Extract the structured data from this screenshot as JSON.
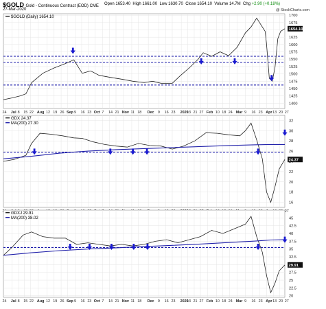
{
  "header": {
    "symbol": "$GOLD",
    "name": "Gold - Continuous Contract (EOD) CME",
    "date": "27-Mar-2020",
    "open_label": "Open",
    "open": "1653.40",
    "high_label": "High",
    "high": "1661.00",
    "low_label": "Low",
    "low": "1630.70",
    "close_label": "Close",
    "close": "1654.10",
    "volume_label": "Volume",
    "volume": "14.7M",
    "change_label": "Chg",
    "change": "+2.90 (+0.18%)",
    "brand": "@ StockCharts.com"
  },
  "colors": {
    "price": "#222222",
    "ma": "#2222aa",
    "hline": "#1a1aaa",
    "arrow": "#1a1ad0",
    "grid": "#e4e4e4",
    "axis": "#888888"
  },
  "chart_data": [
    {
      "type": "line",
      "legend": "$GOLD (Daily) 1654.10",
      "last_value_label": "1654.10",
      "ylim": [
        1382,
        1705
      ],
      "y_ticks": [
        1400,
        1425,
        1450,
        1475,
        1500,
        1525,
        1550,
        1575,
        1600,
        1625,
        1650,
        1675,
        1700
      ],
      "hlines": [
        1560,
        1540,
        1462
      ],
      "arrows": [
        {
          "x": 0.247,
          "y": 1568
        },
        {
          "x": 0.703,
          "y": 1532
        },
        {
          "x": 0.822,
          "y": 1532
        },
        {
          "x": 0.953,
          "y": 1475
        }
      ],
      "series": [
        {
          "x": [
            0,
            0.03,
            0.06,
            0.08,
            0.1,
            0.14,
            0.18,
            0.22,
            0.25,
            0.28,
            0.31,
            0.34,
            0.38,
            0.42,
            0.46,
            0.5,
            0.53,
            0.56,
            0.6,
            0.63,
            0.66,
            0.69,
            0.71,
            0.74,
            0.77,
            0.8,
            0.83,
            0.86,
            0.88,
            0.9,
            0.91,
            0.93,
            0.935,
            0.945,
            0.955,
            0.965,
            0.975,
            0.985,
            1.0
          ],
          "values": [
            1412,
            1418,
            1425,
            1432,
            1470,
            1502,
            1520,
            1535,
            1548,
            1502,
            1510,
            1495,
            1488,
            1482,
            1475,
            1470,
            1475,
            1468,
            1468,
            1495,
            1520,
            1548,
            1572,
            1560,
            1575,
            1562,
            1590,
            1640,
            1660,
            1690,
            1675,
            1645,
            1600,
            1485,
            1475,
            1520,
            1620,
            1645,
            1654
          ]
        }
      ]
    },
    {
      "type": "line",
      "legend_price": "GDX 24.37",
      "legend_ma": "MA(200) 27.30",
      "last_value_label": "24.37",
      "ylim": [
        15,
        33
      ],
      "y_ticks": [
        16,
        18,
        20,
        22,
        24,
        26,
        28,
        30,
        32
      ],
      "hlines": [
        25.8
      ],
      "arrows": [
        {
          "x": 0.11,
          "y": 25.3
        },
        {
          "x": 0.38,
          "y": 25.3
        },
        {
          "x": 0.46,
          "y": 25.3
        },
        {
          "x": 0.51,
          "y": 25.3
        },
        {
          "x": 0.905,
          "y": 25.3
        },
        {
          "x": 1.0,
          "y": 29.0
        }
      ],
      "series": [
        {
          "x": [
            0,
            0.04,
            0.08,
            0.1,
            0.13,
            0.17,
            0.21,
            0.25,
            0.28,
            0.32,
            0.36,
            0.4,
            0.44,
            0.48,
            0.52,
            0.56,
            0.6,
            0.64,
            0.68,
            0.72,
            0.76,
            0.8,
            0.84,
            0.86,
            0.88,
            0.9,
            0.92,
            0.935,
            0.95,
            0.965,
            0.98,
            1.0
          ],
          "values": [
            24.0,
            24.4,
            25.2,
            27.5,
            29.5,
            29.3,
            29.0,
            28.6,
            28.5,
            27.8,
            27.3,
            27.0,
            26.8,
            27.5,
            27.1,
            27.0,
            26.4,
            27.0,
            28.0,
            29.6,
            29.5,
            29.2,
            29.0,
            30.0,
            31.5,
            28.2,
            24.5,
            18.0,
            16.0,
            19.0,
            22.5,
            24.37
          ]
        },
        {
          "x": [
            0,
            0.1,
            0.2,
            0.3,
            0.4,
            0.5,
            0.6,
            0.7,
            0.8,
            0.9,
            0.95,
            1.0
          ],
          "values": [
            24.5,
            25.0,
            25.6,
            26.0,
            26.3,
            26.5,
            26.7,
            26.9,
            27.1,
            27.25,
            27.3,
            27.3
          ]
        }
      ]
    },
    {
      "type": "line",
      "legend_price": "GDXJ 29.91",
      "legend_ma": "MA(200) 38.02",
      "last_value_label": "29.91",
      "ylim": [
        19.5,
        47.5
      ],
      "y_ticks": [
        20.0,
        22.5,
        25.0,
        27.5,
        30.0,
        32.5,
        35.0,
        37.5,
        40.0,
        42.5,
        45.0
      ],
      "hlines": [
        35.5
      ],
      "arrows": [
        {
          "x": 0.237,
          "y": 34.7
        },
        {
          "x": 0.306,
          "y": 34.7
        },
        {
          "x": 0.384,
          "y": 34.7
        },
        {
          "x": 0.463,
          "y": 34.7
        },
        {
          "x": 0.512,
          "y": 34.7
        },
        {
          "x": 0.905,
          "y": 34.7
        },
        {
          "x": 1.0,
          "y": 37.0
        }
      ],
      "series": [
        {
          "x": [
            0,
            0.03,
            0.07,
            0.1,
            0.14,
            0.18,
            0.22,
            0.26,
            0.3,
            0.34,
            0.38,
            0.42,
            0.46,
            0.5,
            0.54,
            0.58,
            0.62,
            0.66,
            0.7,
            0.74,
            0.78,
            0.82,
            0.86,
            0.88,
            0.9,
            0.92,
            0.935,
            0.95,
            0.965,
            0.98,
            1.0
          ],
          "values": [
            33.0,
            35.5,
            39.5,
            40.5,
            39.0,
            38.5,
            38.5,
            36.5,
            37.0,
            36.5,
            36.0,
            36.5,
            36.0,
            36.5,
            37.5,
            38.0,
            37.0,
            38.0,
            39.0,
            41.0,
            40.0,
            41.5,
            43.0,
            45.5,
            39.0,
            34.0,
            26.5,
            21.0,
            24.0,
            28.0,
            29.91
          ]
        },
        {
          "x": [
            0,
            0.1,
            0.2,
            0.3,
            0.4,
            0.5,
            0.6,
            0.7,
            0.8,
            0.9,
            0.95,
            1.0
          ],
          "values": [
            33.0,
            33.8,
            34.5,
            35.0,
            35.4,
            35.8,
            36.2,
            36.6,
            37.1,
            37.6,
            37.9,
            38.0
          ]
        }
      ]
    }
  ],
  "x_axis": {
    "labels": [
      "24",
      "Jul",
      "8",
      "15",
      "22",
      "Aug",
      "12",
      "19",
      "26",
      "Sep",
      "9",
      "16",
      "23",
      "Oct",
      "7",
      "14",
      "21",
      "Nov",
      "11",
      "18",
      "Dec",
      "9",
      "16",
      "23",
      "2020",
      "13",
      "21",
      "27",
      "Feb",
      "10",
      "18",
      "24",
      "Mar",
      "9",
      "16",
      "23",
      "Apr",
      "13",
      "20",
      "27"
    ],
    "bold": [
      "Jul",
      "Aug",
      "Sep",
      "Oct",
      "Nov",
      "Dec",
      "2020",
      "Feb",
      "Mar",
      "Apr"
    ],
    "positions": [
      0.0,
      0.03,
      0.054,
      0.075,
      0.096,
      0.123,
      0.155,
      0.18,
      0.205,
      0.228,
      0.255,
      0.278,
      0.302,
      0.325,
      0.353,
      0.377,
      0.4,
      0.425,
      0.456,
      0.48,
      0.515,
      0.552,
      0.576,
      0.6,
      0.632,
      0.655,
      0.678,
      0.7,
      0.725,
      0.757,
      0.78,
      0.803,
      0.83,
      0.86,
      0.885,
      0.91,
      0.936,
      0.96,
      0.982,
      1.003
    ]
  }
}
